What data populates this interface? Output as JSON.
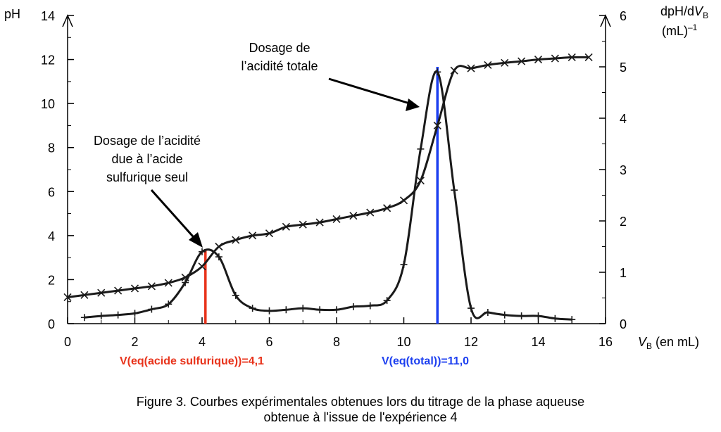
{
  "chart_data": {
    "type": "line",
    "x_axis": {
      "label_prefix": "V",
      "label_sub": "B",
      "label_suffix": " (en mL)",
      "range": [
        0,
        16
      ],
      "ticks": [
        0,
        2,
        4,
        6,
        8,
        10,
        12,
        14,
        16
      ]
    },
    "y_left": {
      "label": "pH",
      "range": [
        0,
        14
      ],
      "ticks": [
        0,
        2,
        4,
        6,
        8,
        10,
        12,
        14
      ]
    },
    "y_right": {
      "label_line1_prefix": "dpH/d",
      "label_line1_var": "V",
      "label_line1_sub": "B",
      "label_line2": "(mL)",
      "label_line2_sup": "–1",
      "range": [
        0,
        6
      ],
      "ticks": [
        0,
        1,
        2,
        3,
        4,
        5,
        6
      ]
    },
    "series": [
      {
        "axis": "left",
        "marker": "x",
        "color": "#1a1a1a",
        "points": [
          [
            0,
            1.2
          ],
          [
            0.5,
            1.3
          ],
          [
            1,
            1.4
          ],
          [
            1.5,
            1.5
          ],
          [
            2,
            1.6
          ],
          [
            2.5,
            1.7
          ],
          [
            3,
            1.85
          ],
          [
            3.5,
            2.1
          ],
          [
            4,
            2.6
          ],
          [
            4.5,
            3.5
          ],
          [
            5,
            3.8
          ],
          [
            5.5,
            4.0
          ],
          [
            6,
            4.1
          ],
          [
            6.5,
            4.4
          ],
          [
            7,
            4.5
          ],
          [
            7.5,
            4.6
          ],
          [
            8,
            4.75
          ],
          [
            8.5,
            4.9
          ],
          [
            9,
            5.05
          ],
          [
            9.5,
            5.25
          ],
          [
            10,
            5.6
          ],
          [
            10.5,
            6.5
          ],
          [
            11,
            9.0
          ],
          [
            11.5,
            11.5
          ],
          [
            12,
            11.6
          ],
          [
            12.5,
            11.75
          ],
          [
            13,
            11.85
          ],
          [
            13.5,
            11.92
          ],
          [
            14,
            12.0
          ],
          [
            14.5,
            12.05
          ],
          [
            15,
            12.1
          ],
          [
            15.5,
            12.1
          ]
        ]
      },
      {
        "axis": "right",
        "marker": "+",
        "color": "#1a1a1a",
        "points": [
          [
            0.5,
            0.12
          ],
          [
            1,
            0.15
          ],
          [
            1.5,
            0.17
          ],
          [
            2,
            0.2
          ],
          [
            2.5,
            0.28
          ],
          [
            3,
            0.38
          ],
          [
            3.5,
            0.8
          ],
          [
            4,
            1.4
          ],
          [
            4.5,
            1.3
          ],
          [
            5,
            0.55
          ],
          [
            5.5,
            0.3
          ],
          [
            6,
            0.25
          ],
          [
            6.5,
            0.27
          ],
          [
            7,
            0.3
          ],
          [
            7.5,
            0.27
          ],
          [
            8,
            0.27
          ],
          [
            8.5,
            0.33
          ],
          [
            9,
            0.35
          ],
          [
            9.5,
            0.45
          ],
          [
            10,
            1.15
          ],
          [
            10.5,
            3.4
          ],
          [
            11,
            4.9
          ],
          [
            11.5,
            2.6
          ],
          [
            12,
            0.3
          ],
          [
            12.5,
            0.22
          ],
          [
            13,
            0.17
          ],
          [
            13.5,
            0.15
          ],
          [
            14,
            0.15
          ],
          [
            14.5,
            0.1
          ],
          [
            15,
            0.08
          ]
        ]
      }
    ],
    "equivalence_lines": [
      {
        "x": 4.1,
        "y_top_right": 1.45,
        "color": "#e8321a",
        "label": "V(eq(acide sulfurique))=4,1"
      },
      {
        "x": 11.0,
        "y_top_right": 5.0,
        "color": "#1c3ff0",
        "label": "V(eq(total))=11,0"
      }
    ],
    "annotations": [
      {
        "lines": [
          "Dosage de l’acidité",
          "due à l’acide",
          "sulfurique seul"
        ],
        "arrow_to": [
          4.0,
          3.5
        ]
      },
      {
        "lines": [
          "Dosage de",
          "l’acidité totale"
        ],
        "arrow_to": [
          10.6,
          9.6
        ]
      }
    ],
    "grid": false
  },
  "caption": {
    "line1": "Figure 3. Courbes expérimentales obtenues lors du titrage de la phase aqueuse",
    "line2": "obtenue à l'issue de l'expérience 4"
  }
}
